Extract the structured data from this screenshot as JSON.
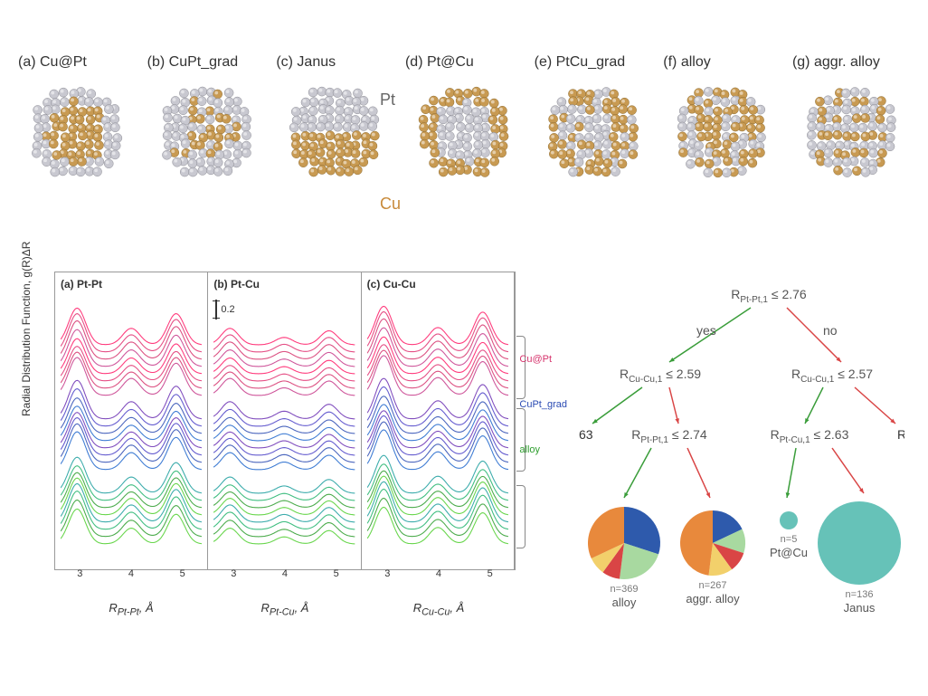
{
  "colors": {
    "pt": "#c8c8d0",
    "pt_edge": "#888890",
    "cu": "#c89a52",
    "cu_edge": "#8a6a30",
    "tree_yes": "#3a9d3a",
    "tree_no": "#d94545",
    "pie_blue": "#2e5aac",
    "pie_orange": "#e8893c",
    "pie_green": "#a8d9a0",
    "pie_red": "#d94545",
    "pie_yellow": "#f2d06b",
    "pie_teal": "#66c2b8"
  },
  "nanoparticles": [
    {
      "tag": "(a)",
      "name": "Cu@Pt",
      "pattern": "core_cu_shell_pt"
    },
    {
      "tag": "(b)",
      "name": "CuPt_grad",
      "pattern": "grad_cu_center"
    },
    {
      "tag": "(c)",
      "name": "Janus",
      "pattern": "janus"
    },
    {
      "tag": "(d)",
      "name": "Pt@Cu",
      "pattern": "core_pt_shell_cu"
    },
    {
      "tag": "(e)",
      "name": "PtCu_grad",
      "pattern": "grad_pt_center"
    },
    {
      "tag": "(f)",
      "name": "alloy",
      "pattern": "random"
    },
    {
      "tag": "(g)",
      "name": "aggr. alloy",
      "pattern": "clustered"
    }
  ],
  "element_labels": {
    "pt": "Pt",
    "cu": "Cu"
  },
  "rdf": {
    "yaxis": "Radial Distribution Function, g(R)ΔR",
    "scale_label": "0.2",
    "panels": [
      {
        "tag": "(a) Pt-Pt",
        "xlabel": "R_Pt-Pt, Å"
      },
      {
        "tag": "(b) Pt-Cu",
        "xlabel": "R_Pt-Cu, Å"
      },
      {
        "tag": "(c) Cu-Cu",
        "xlabel": "R_Cu-Cu, Å"
      }
    ],
    "xticks": [
      "3",
      "4",
      "5"
    ],
    "xlim": [
      2.4,
      5.4
    ],
    "legend": [
      {
        "label": "Cu@Pt",
        "color": "#d6336c"
      },
      {
        "label": "CuPt_grad",
        "color": "#2b4bb3"
      },
      {
        "label": "alloy",
        "color": "#2e9e2e"
      }
    ],
    "series_colors": {
      "top_band": [
        "#ff1a66",
        "#e03070",
        "#d6336c",
        "#c73a8a"
      ],
      "mid_band": [
        "#6b2fb3",
        "#4a3fc7",
        "#2b4bb3",
        "#1f66cc"
      ],
      "low_band": [
        "#1a9e9e",
        "#1fb36b",
        "#2e9e2e",
        "#4fcf2e"
      ]
    },
    "curve_shape": {
      "peaks_x": [
        2.75,
        3.9,
        4.85
      ],
      "peaks_h": [
        1.0,
        0.45,
        0.85
      ],
      "width": 0.18
    },
    "panel_peak_scale": [
      1.0,
      0.45,
      1.05
    ]
  },
  "tree": {
    "root": {
      "text": "R_Pt-Pt,1 ≤ 2.76"
    },
    "yes": "yes",
    "no": "no",
    "left": {
      "text": "R_Cu-Cu,1 ≤ 2.59"
    },
    "right": {
      "text": "R_Cu-Cu,1 ≤ 2.57"
    },
    "left_leaf_n": "63",
    "left2": {
      "text": "R_Pt-Pt,1 ≤ 2.74"
    },
    "right2": {
      "text": "R_Pt-Cu,1 ≤ 2.63"
    },
    "right_leaf": "R",
    "pies": [
      {
        "label": "alloy",
        "n": "n=369",
        "r": 40,
        "slices": [
          {
            "color": "#2e5aac",
            "frac": 0.3
          },
          {
            "color": "#a8d9a0",
            "frac": 0.22
          },
          {
            "color": "#d94545",
            "frac": 0.08
          },
          {
            "color": "#f2d06b",
            "frac": 0.08
          },
          {
            "color": "#e8893c",
            "frac": 0.32
          }
        ]
      },
      {
        "label": "aggr. alloy",
        "n": "n=267",
        "r": 36,
        "slices": [
          {
            "color": "#2e5aac",
            "frac": 0.18
          },
          {
            "color": "#a8d9a0",
            "frac": 0.12
          },
          {
            "color": "#d94545",
            "frac": 0.1
          },
          {
            "color": "#f2d06b",
            "frac": 0.12
          },
          {
            "color": "#e8893c",
            "frac": 0.48
          }
        ]
      },
      {
        "label": "Pt@Cu",
        "n": "n=5",
        "r": 10,
        "slices": [
          {
            "color": "#66c2b8",
            "frac": 1.0
          }
        ]
      },
      {
        "label": "Janus",
        "n": "n=136",
        "r": 46,
        "slices": [
          {
            "color": "#66c2b8",
            "frac": 1.0
          }
        ]
      }
    ]
  }
}
